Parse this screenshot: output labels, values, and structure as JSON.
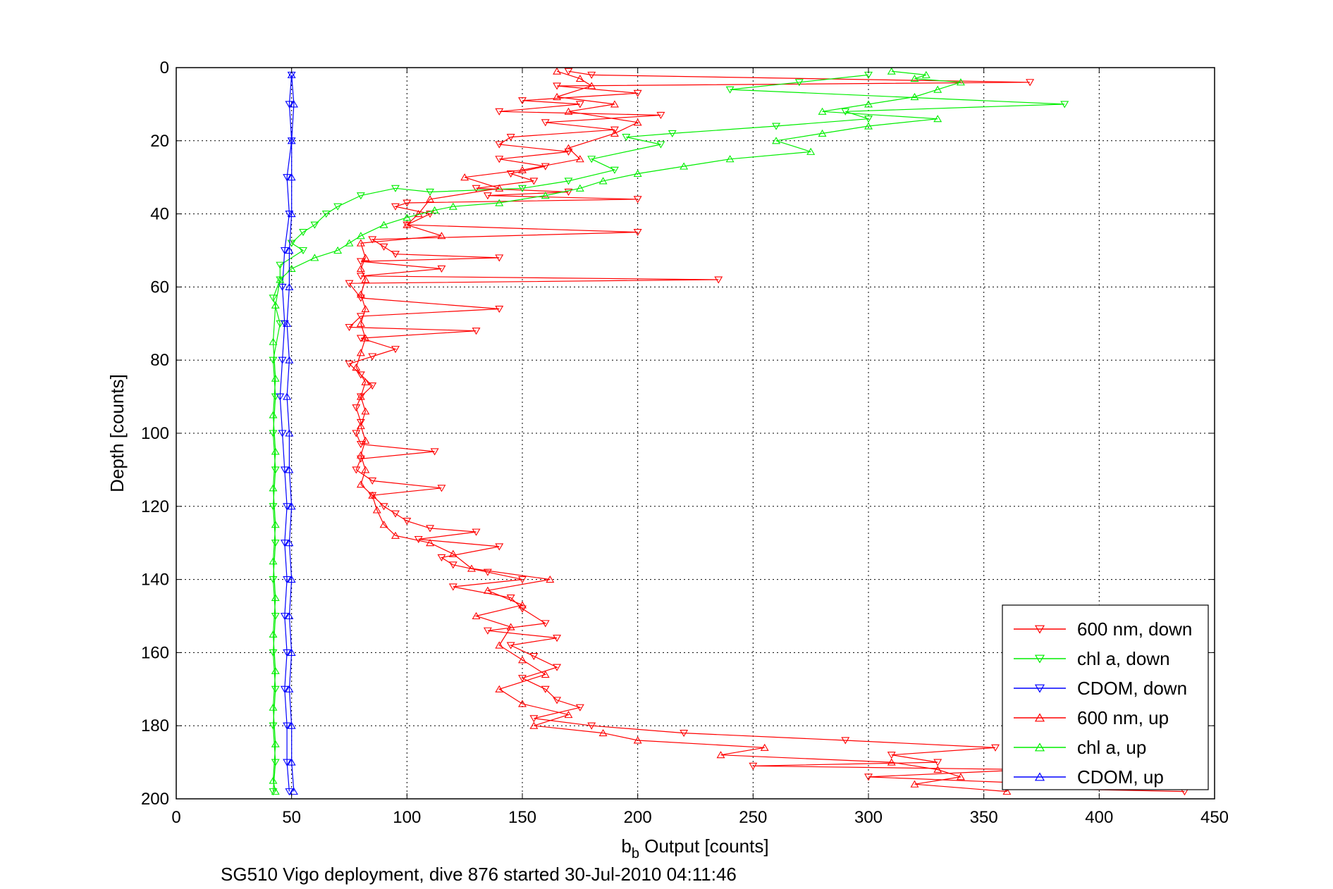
{
  "chart_data": {
    "type": "line",
    "title": "",
    "xlabel_main": "b",
    "xlabel_sub": "b",
    "xlabel_rest": " Output [counts]",
    "ylabel": "Depth [counts]",
    "caption": "SG510 Vigo deployment, dive 876 started 30-Jul-2010 04:11:46",
    "xlim": [
      0,
      450
    ],
    "ylim": [
      0,
      200
    ],
    "y_reversed": true,
    "grid": true,
    "legend_position": "bottom-right",
    "xticks": [
      0,
      50,
      100,
      150,
      200,
      250,
      300,
      350,
      400,
      450
    ],
    "yticks": [
      0,
      20,
      40,
      60,
      80,
      100,
      120,
      140,
      160,
      180,
      200
    ],
    "series": [
      {
        "name": "600 nm, down",
        "color": "#ff0000",
        "marker": "triangle-down",
        "points": [
          [
            170,
            1
          ],
          [
            180,
            2
          ],
          [
            370,
            4
          ],
          [
            165,
            5
          ],
          [
            200,
            7
          ],
          [
            150,
            9
          ],
          [
            175,
            10
          ],
          [
            140,
            12
          ],
          [
            210,
            13
          ],
          [
            160,
            15
          ],
          [
            190,
            17
          ],
          [
            145,
            19
          ],
          [
            140,
            21
          ],
          [
            170,
            23
          ],
          [
            140,
            25
          ],
          [
            160,
            27
          ],
          [
            145,
            29
          ],
          [
            155,
            31
          ],
          [
            130,
            33
          ],
          [
            170,
            34
          ],
          [
            135,
            35
          ],
          [
            200,
            36
          ],
          [
            100,
            37
          ],
          [
            95,
            38
          ],
          [
            110,
            40
          ],
          [
            100,
            43
          ],
          [
            200,
            45
          ],
          [
            85,
            47
          ],
          [
            90,
            49
          ],
          [
            95,
            51
          ],
          [
            140,
            52
          ],
          [
            80,
            53
          ],
          [
            115,
            55
          ],
          [
            80,
            57
          ],
          [
            235,
            58
          ],
          [
            75,
            59
          ],
          [
            80,
            63
          ],
          [
            140,
            66
          ],
          [
            80,
            68
          ],
          [
            75,
            71
          ],
          [
            130,
            72
          ],
          [
            80,
            74
          ],
          [
            95,
            77
          ],
          [
            85,
            79
          ],
          [
            75,
            81
          ],
          [
            80,
            84
          ],
          [
            85,
            87
          ],
          [
            80,
            90
          ],
          [
            78,
            93
          ],
          [
            80,
            97
          ],
          [
            78,
            100
          ],
          [
            80,
            103
          ],
          [
            112,
            105
          ],
          [
            80,
            107
          ],
          [
            78,
            110
          ],
          [
            85,
            113
          ],
          [
            115,
            115
          ],
          [
            85,
            117
          ],
          [
            90,
            120
          ],
          [
            95,
            122
          ],
          [
            100,
            124
          ],
          [
            110,
            126
          ],
          [
            130,
            127
          ],
          [
            105,
            129
          ],
          [
            140,
            131
          ],
          [
            115,
            134
          ],
          [
            120,
            136
          ],
          [
            135,
            138
          ],
          [
            150,
            140
          ],
          [
            120,
            142
          ],
          [
            145,
            145
          ],
          [
            150,
            148
          ],
          [
            160,
            152
          ],
          [
            135,
            154
          ],
          [
            165,
            156
          ],
          [
            145,
            158
          ],
          [
            155,
            161
          ],
          [
            165,
            164
          ],
          [
            150,
            167
          ],
          [
            160,
            170
          ],
          [
            165,
            173
          ],
          [
            175,
            175
          ],
          [
            155,
            178
          ],
          [
            180,
            180
          ],
          [
            220,
            182
          ],
          [
            290,
            184
          ],
          [
            355,
            186
          ],
          [
            310,
            188
          ],
          [
            330,
            190
          ],
          [
            250,
            191
          ],
          [
            370,
            192
          ],
          [
            300,
            194
          ],
          [
            380,
            196
          ],
          [
            360,
            197
          ],
          [
            437,
            198
          ]
        ]
      },
      {
        "name": "chl a, down",
        "color": "#00ee00",
        "marker": "triangle-down",
        "points": [
          [
            300,
            2
          ],
          [
            270,
            4
          ],
          [
            240,
            6
          ],
          [
            385,
            10
          ],
          [
            290,
            12
          ],
          [
            300,
            14
          ],
          [
            260,
            16
          ],
          [
            215,
            18
          ],
          [
            195,
            19
          ],
          [
            210,
            21
          ],
          [
            180,
            25
          ],
          [
            190,
            28
          ],
          [
            170,
            31
          ],
          [
            150,
            33
          ],
          [
            110,
            34
          ],
          [
            95,
            33
          ],
          [
            80,
            35
          ],
          [
            70,
            38
          ],
          [
            65,
            40
          ],
          [
            60,
            43
          ],
          [
            55,
            45
          ],
          [
            50,
            48
          ],
          [
            55,
            50
          ],
          [
            45,
            54
          ],
          [
            45,
            58
          ],
          [
            42,
            63
          ],
          [
            45,
            70
          ],
          [
            42,
            80
          ],
          [
            43,
            90
          ],
          [
            42,
            100
          ],
          [
            43,
            110
          ],
          [
            42,
            120
          ],
          [
            43,
            130
          ],
          [
            42,
            140
          ],
          [
            43,
            150
          ],
          [
            42,
            160
          ],
          [
            43,
            170
          ],
          [
            42,
            180
          ],
          [
            43,
            190
          ],
          [
            42,
            198
          ]
        ]
      },
      {
        "name": "CDOM, down",
        "color": "#0000ff",
        "marker": "triangle-down",
        "points": [
          [
            50,
            2
          ],
          [
            49,
            10
          ],
          [
            50,
            20
          ],
          [
            48,
            30
          ],
          [
            49,
            40
          ],
          [
            47,
            50
          ],
          [
            46,
            60
          ],
          [
            47,
            70
          ],
          [
            46,
            80
          ],
          [
            45,
            90
          ],
          [
            46,
            100
          ],
          [
            47,
            110
          ],
          [
            48,
            120
          ],
          [
            47,
            130
          ],
          [
            48,
            140
          ],
          [
            47,
            150
          ],
          [
            48,
            160
          ],
          [
            47,
            170
          ],
          [
            48,
            180
          ],
          [
            48,
            190
          ],
          [
            49,
            198
          ]
        ]
      },
      {
        "name": "600 nm, up",
        "color": "#ff0000",
        "marker": "triangle-up",
        "points": [
          [
            360,
            198
          ],
          [
            320,
            196
          ],
          [
            340,
            194
          ],
          [
            330,
            192
          ],
          [
            310,
            190
          ],
          [
            236,
            188
          ],
          [
            255,
            186
          ],
          [
            200,
            184
          ],
          [
            185,
            182
          ],
          [
            155,
            180
          ],
          [
            170,
            177
          ],
          [
            150,
            174
          ],
          [
            140,
            170
          ],
          [
            160,
            166
          ],
          [
            150,
            162
          ],
          [
            140,
            158
          ],
          [
            145,
            153
          ],
          [
            130,
            150
          ],
          [
            150,
            147
          ],
          [
            135,
            143
          ],
          [
            162,
            140
          ],
          [
            128,
            137
          ],
          [
            120,
            133
          ],
          [
            110,
            130
          ],
          [
            95,
            128
          ],
          [
            90,
            125
          ],
          [
            87,
            121
          ],
          [
            85,
            117
          ],
          [
            80,
            114
          ],
          [
            82,
            110
          ],
          [
            80,
            106
          ],
          [
            82,
            102
          ],
          [
            80,
            98
          ],
          [
            82,
            94
          ],
          [
            80,
            90
          ],
          [
            82,
            86
          ],
          [
            78,
            82
          ],
          [
            80,
            78
          ],
          [
            82,
            74
          ],
          [
            80,
            70
          ],
          [
            82,
            66
          ],
          [
            80,
            62
          ],
          [
            82,
            58
          ],
          [
            80,
            55
          ],
          [
            82,
            52
          ],
          [
            80,
            48
          ],
          [
            115,
            46
          ],
          [
            100,
            43
          ],
          [
            105,
            40
          ],
          [
            110,
            36
          ],
          [
            140,
            33
          ],
          [
            125,
            30
          ],
          [
            150,
            28
          ],
          [
            175,
            25
          ],
          [
            170,
            22
          ],
          [
            190,
            18
          ],
          [
            200,
            15
          ],
          [
            170,
            12
          ],
          [
            190,
            10
          ],
          [
            165,
            8
          ],
          [
            180,
            5
          ],
          [
            175,
            3
          ],
          [
            165,
            1
          ]
        ]
      },
      {
        "name": "chl a, up",
        "color": "#00ee00",
        "marker": "triangle-up",
        "points": [
          [
            310,
            1
          ],
          [
            325,
            2
          ],
          [
            320,
            3
          ],
          [
            340,
            4
          ],
          [
            330,
            6
          ],
          [
            320,
            8
          ],
          [
            300,
            10
          ],
          [
            280,
            12
          ],
          [
            330,
            14
          ],
          [
            300,
            16
          ],
          [
            280,
            18
          ],
          [
            260,
            20
          ],
          [
            275,
            23
          ],
          [
            240,
            25
          ],
          [
            220,
            27
          ],
          [
            200,
            29
          ],
          [
            185,
            31
          ],
          [
            175,
            33
          ],
          [
            160,
            35
          ],
          [
            140,
            37
          ],
          [
            120,
            38
          ],
          [
            112,
            39
          ],
          [
            100,
            41
          ],
          [
            90,
            43
          ],
          [
            80,
            46
          ],
          [
            75,
            48
          ],
          [
            70,
            50
          ],
          [
            60,
            52
          ],
          [
            50,
            55
          ],
          [
            45,
            58
          ],
          [
            43,
            65
          ],
          [
            42,
            75
          ],
          [
            43,
            85
          ],
          [
            42,
            95
          ],
          [
            43,
            105
          ],
          [
            42,
            115
          ],
          [
            43,
            125
          ],
          [
            42,
            135
          ],
          [
            43,
            145
          ],
          [
            42,
            155
          ],
          [
            43,
            165
          ],
          [
            42,
            175
          ],
          [
            43,
            185
          ],
          [
            42,
            195
          ],
          [
            43,
            198
          ]
        ]
      },
      {
        "name": "CDOM, up",
        "color": "#0000ff",
        "marker": "triangle-up",
        "points": [
          [
            51,
            198
          ],
          [
            50,
            190
          ],
          [
            50,
            180
          ],
          [
            49,
            170
          ],
          [
            50,
            160
          ],
          [
            49,
            150
          ],
          [
            50,
            140
          ],
          [
            49,
            130
          ],
          [
            50,
            120
          ],
          [
            49,
            110
          ],
          [
            49,
            100
          ],
          [
            48,
            90
          ],
          [
            49,
            80
          ],
          [
            48,
            70
          ],
          [
            49,
            60
          ],
          [
            49,
            50
          ],
          [
            50,
            40
          ],
          [
            50,
            30
          ],
          [
            50,
            20
          ],
          [
            51,
            10
          ],
          [
            50,
            2
          ]
        ]
      }
    ]
  }
}
